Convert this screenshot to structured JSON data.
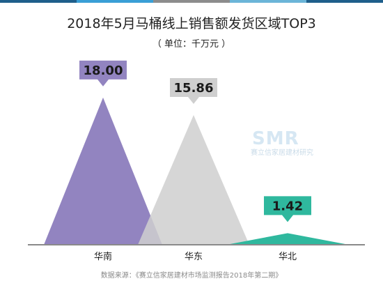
{
  "chart_data": {
    "type": "triangle-bar",
    "title": "2018年5月马桶线上销售额发货区域TOP3",
    "subtitle": "（ 单位：千万元 ）",
    "categories": [
      "华南",
      "华东",
      "华北"
    ],
    "values": [
      18.0,
      15.86,
      1.42
    ],
    "value_labels": [
      "18.00",
      "15.86",
      "1.42"
    ],
    "colors": [
      "#9284c0",
      "#cfcfcf",
      "#2fb89e"
    ],
    "ylim": [
      0,
      18.5
    ],
    "source": "数据来源：《赛立信家居建材市场监测报告2018年第二期》"
  },
  "header_stripes": [
    "#1f5f8b",
    "#3a9fd6",
    "#8c8c8c",
    "#6bb5d8",
    "#1f5f8b"
  ],
  "watermark": {
    "logo": "SMR",
    "text": "赛立信家居建材研究"
  }
}
